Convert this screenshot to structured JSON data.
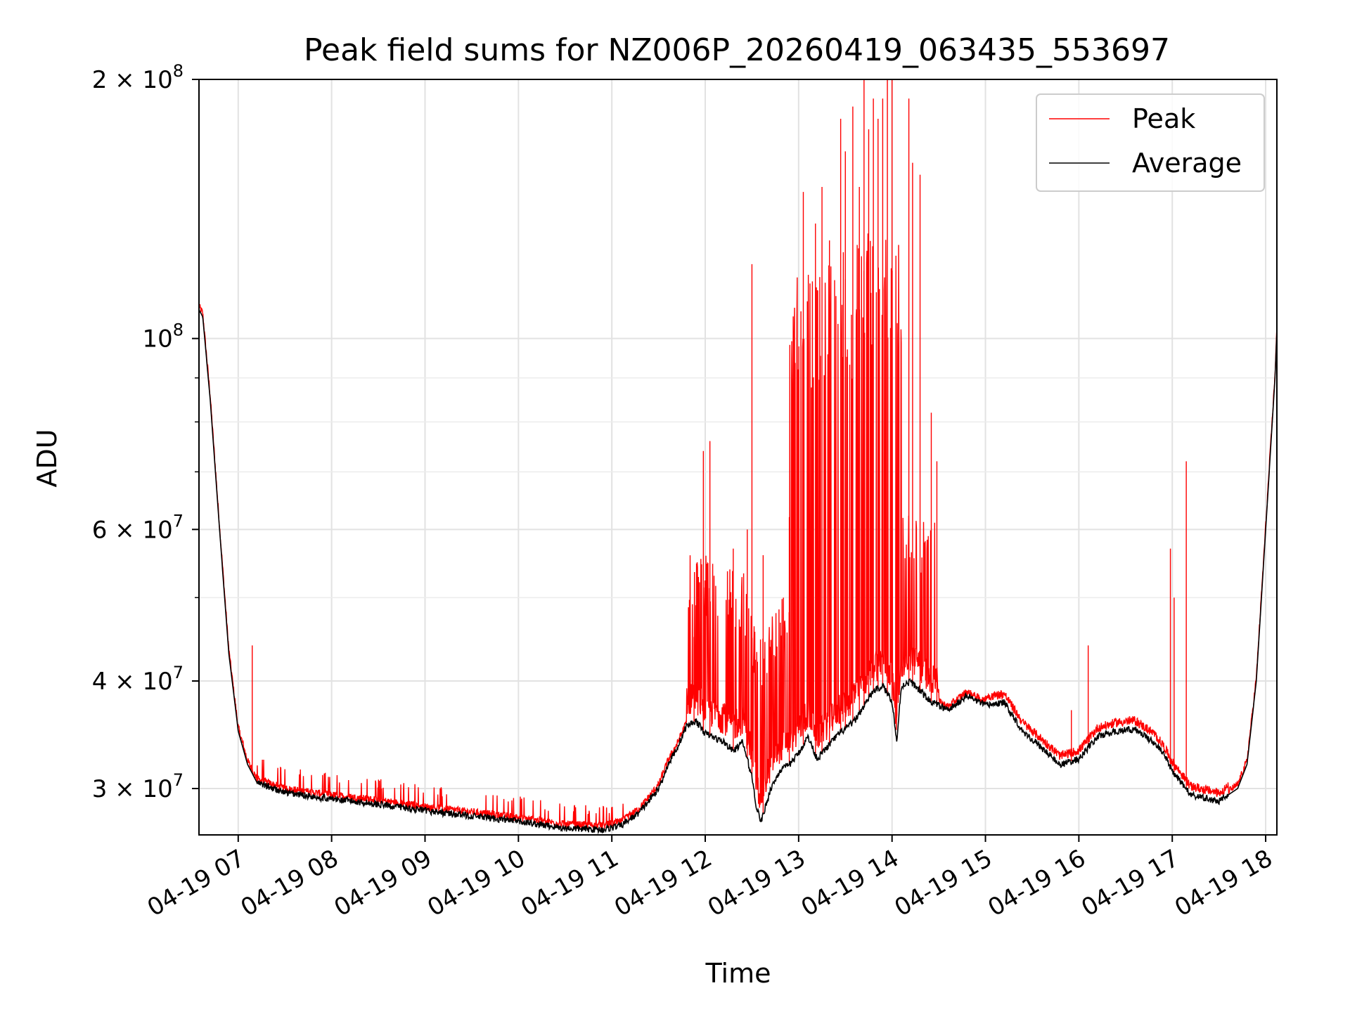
{
  "chart_data": {
    "type": "line",
    "title": "Peak field sums for NZ006P_20260419_063435_553697",
    "xlabel": "Time",
    "ylabel": "ADU",
    "yscale": "log",
    "xlim": [
      6.58,
      18.12
    ],
    "ylim": [
      26500000,
      200000000
    ],
    "grid": true,
    "legend": {
      "placement": "top-right",
      "entries": [
        "Peak",
        "Average"
      ]
    },
    "x_ticks": [
      {
        "hour": 7,
        "label": "04-19 07"
      },
      {
        "hour": 8,
        "label": "04-19 08"
      },
      {
        "hour": 9,
        "label": "04-19 09"
      },
      {
        "hour": 10,
        "label": "04-19 10"
      },
      {
        "hour": 11,
        "label": "04-19 11"
      },
      {
        "hour": 12,
        "label": "04-19 12"
      },
      {
        "hour": 13,
        "label": "04-19 13"
      },
      {
        "hour": 14,
        "label": "04-19 14"
      },
      {
        "hour": 15,
        "label": "04-19 15"
      },
      {
        "hour": 16,
        "label": "04-19 16"
      },
      {
        "hour": 17,
        "label": "04-19 17"
      },
      {
        "hour": 18,
        "label": "04-19 18"
      }
    ],
    "y_ticks": [
      {
        "value": 30000000,
        "base": "3 × 10",
        "exp": "7"
      },
      {
        "value": 40000000,
        "base": "4 × 10",
        "exp": "7"
      },
      {
        "value": 60000000,
        "base": "6 × 10",
        "exp": "7"
      },
      {
        "value": 100000000,
        "base": "10",
        "exp": "8"
      },
      {
        "value": 200000000,
        "base": "2 × 10",
        "exp": "8"
      }
    ],
    "y_minor_ticks": [
      50000000,
      70000000,
      80000000,
      90000000
    ],
    "series": [
      {
        "name": "Average",
        "color": "#000000",
        "x": [
          6.58,
          6.62,
          6.7,
          6.8,
          6.9,
          7.0,
          7.1,
          7.2,
          7.5,
          8.0,
          8.5,
          9.0,
          9.5,
          10.0,
          10.5,
          10.9,
          11.1,
          11.3,
          11.5,
          11.6,
          11.7,
          11.8,
          11.9,
          12.0,
          12.2,
          12.3,
          12.4,
          12.5,
          12.55,
          12.6,
          12.7,
          12.8,
          12.9,
          13.0,
          13.1,
          13.2,
          13.4,
          13.6,
          13.8,
          13.9,
          14.0,
          14.05,
          14.1,
          14.2,
          14.4,
          14.6,
          14.8,
          15.0,
          15.2,
          15.4,
          15.6,
          15.8,
          16.0,
          16.2,
          16.4,
          16.6,
          16.8,
          16.9,
          17.0,
          17.2,
          17.5,
          17.7,
          17.8,
          17.9,
          18.0,
          18.1,
          18.12
        ],
        "y": [
          108000000,
          106000000,
          85000000,
          60000000,
          43000000,
          35000000,
          32000000,
          30500000,
          29700000,
          29200000,
          28800000,
          28300000,
          27900000,
          27500000,
          27000000,
          26900000,
          27200000,
          28200000,
          30000000,
          32000000,
          33500000,
          35500000,
          36000000,
          34800000,
          34000000,
          33200000,
          34000000,
          31000000,
          28500000,
          27500000,
          30000000,
          31500000,
          32000000,
          33000000,
          34500000,
          32500000,
          34500000,
          36000000,
          39000000,
          39500000,
          38000000,
          34000000,
          39500000,
          40000000,
          38000000,
          37000000,
          38500000,
          37500000,
          37800000,
          35000000,
          33500000,
          32000000,
          32500000,
          34500000,
          35000000,
          35200000,
          34000000,
          33000000,
          31500000,
          29500000,
          29000000,
          30000000,
          32000000,
          40000000,
          60000000,
          90000000,
          102000000
        ]
      },
      {
        "name": "Peak",
        "color": "#ff0000",
        "spikes": [
          {
            "x": 7.15,
            "y": 44000000
          },
          {
            "x": 11.88,
            "y": 45000000
          },
          {
            "x": 11.98,
            "y": 74000000
          },
          {
            "x": 12.05,
            "y": 76000000
          },
          {
            "x": 12.3,
            "y": 57000000
          },
          {
            "x": 12.45,
            "y": 60000000
          },
          {
            "x": 12.5,
            "y": 122000000
          },
          {
            "x": 12.62,
            "y": 56000000
          },
          {
            "x": 12.9,
            "y": 62000000
          },
          {
            "x": 13.05,
            "y": 148000000
          },
          {
            "x": 13.18,
            "y": 136000000
          },
          {
            "x": 13.25,
            "y": 150000000
          },
          {
            "x": 13.33,
            "y": 130000000
          },
          {
            "x": 13.45,
            "y": 180000000
          },
          {
            "x": 13.5,
            "y": 165000000
          },
          {
            "x": 13.58,
            "y": 186000000
          },
          {
            "x": 13.65,
            "y": 150000000
          },
          {
            "x": 13.7,
            "y": 200000000
          },
          {
            "x": 13.75,
            "y": 175000000
          },
          {
            "x": 13.8,
            "y": 190000000
          },
          {
            "x": 13.85,
            "y": 180000000
          },
          {
            "x": 13.9,
            "y": 190000000
          },
          {
            "x": 13.95,
            "y": 200000000
          },
          {
            "x": 14.0,
            "y": 200000000
          },
          {
            "x": 14.18,
            "y": 190000000
          },
          {
            "x": 14.22,
            "y": 160000000
          },
          {
            "x": 14.3,
            "y": 155000000
          },
          {
            "x": 14.42,
            "y": 82000000
          },
          {
            "x": 14.48,
            "y": 72000000
          },
          {
            "x": 16.1,
            "y": 44000000
          },
          {
            "x": 15.92,
            "y": 37000000
          },
          {
            "x": 16.98,
            "y": 57000000
          },
          {
            "x": 17.02,
            "y": 50000000
          },
          {
            "x": 17.15,
            "y": 72000000
          }
        ]
      }
    ]
  }
}
